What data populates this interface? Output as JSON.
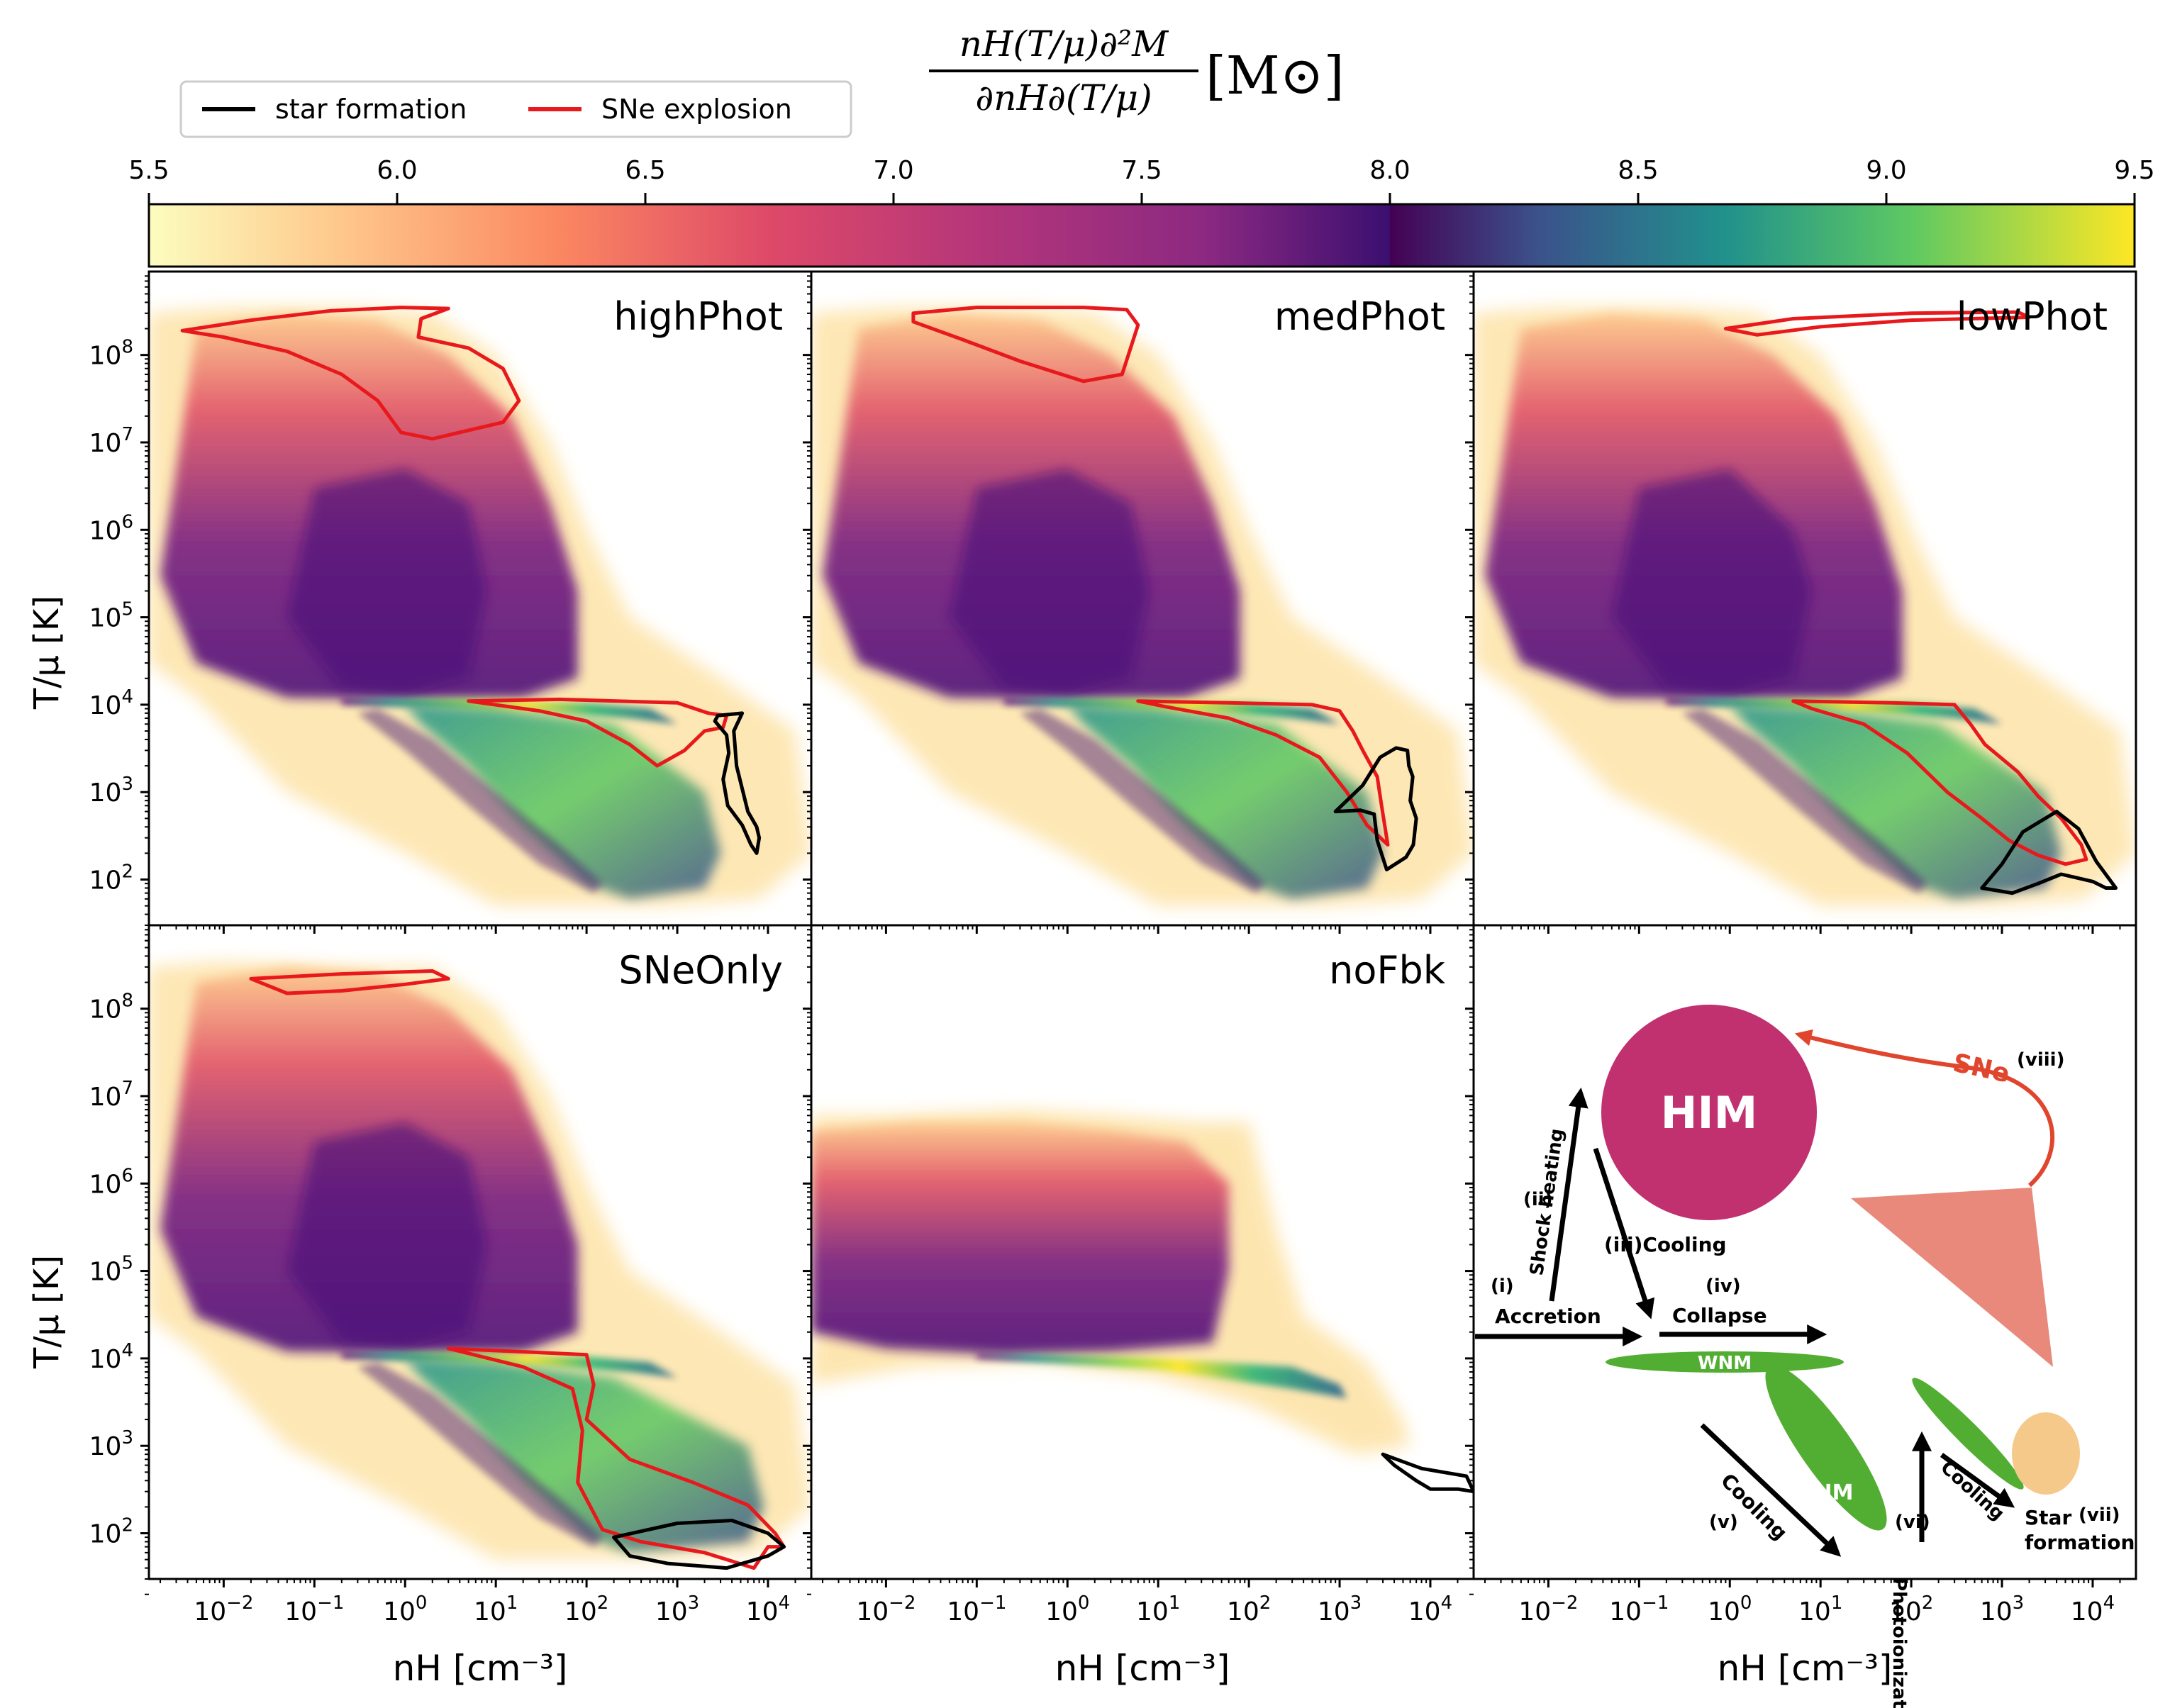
{
  "figure": {
    "colorbar_label": {
      "numerator": "nH(T/μ)∂²M",
      "denominator": "∂nH∂(T/μ)",
      "unit": "[M⊙]"
    },
    "legend": {
      "entries": [
        {
          "label": "star formation",
          "color": "#000000"
        },
        {
          "label": "SNe explosion",
          "color": "#e8191c"
        }
      ]
    },
    "colorbar": {
      "ticks": [
        "5.5",
        "6.0",
        "6.5",
        "7.0",
        "7.5",
        "8.0",
        "8.5",
        "9.0",
        "9.5"
      ],
      "range": [
        5.5,
        9.5
      ],
      "split": 8.0
    },
    "axes": {
      "ylabel": "T/μ [K]",
      "xlabel": "nH [cm⁻³]",
      "y_ticks": [
        "10^8",
        "10^7",
        "10^6",
        "10^5",
        "10^4",
        "10^3",
        "10^2"
      ],
      "x_ticks": [
        "10^-2",
        "10^-1",
        "10^0",
        "10^1",
        "10^2",
        "10^3",
        "10^4"
      ]
    },
    "panels": [
      {
        "name": "highPhot"
      },
      {
        "name": "medPhot"
      },
      {
        "name": "lowPhot"
      },
      {
        "name": "SNeOnly"
      },
      {
        "name": "noFbk"
      }
    ],
    "diagram": {
      "him": "HIM",
      "wnm": "WNM",
      "cnm": "CNM",
      "sne": "SNe",
      "sne_num": "(viii)",
      "accretion_num": "(i)",
      "accretion": "Accretion",
      "shock_num": "(ii)",
      "shock": "Shock heating",
      "cooling3": "(iii)Cooling",
      "collapse_num": "(iv)",
      "collapse": "Collapse",
      "cooling5": "Cooling",
      "cooling5_num": "(v)",
      "photo": "Photoionization",
      "photo_num": "(vi)",
      "cooling6": "Cooling",
      "star": "Star",
      "formation": "formation",
      "star_num": "(vii)"
    }
  },
  "chart_data": {
    "type": "heatmap",
    "title": "",
    "xlabel": "nH [cm⁻³]",
    "ylabel": "T/μ [K]",
    "xscale": "log",
    "yscale": "log",
    "xlim": [
      0.0015,
      30000
    ],
    "ylim": [
      30,
      900000000
    ],
    "colorbar": {
      "label": "nH(T/μ)∂²M/∂nH∂(T/μ) [M⊙]",
      "range": [
        5.5,
        9.5
      ],
      "colormaps": [
        "magma_r (5.5–8.0)",
        "viridis (8.0–9.5)"
      ]
    },
    "legend": [
      {
        "label": "star formation",
        "color": "#000000"
      },
      {
        "label": "SNe explosion",
        "color": "#e8191c"
      }
    ],
    "panels": [
      {
        "name": "highPhot",
        "sne_contours": [
          [
            [
              0.0035,
              190000000.0
            ],
            [
              0.02,
              250000000.0
            ],
            [
              0.15,
              320000000.0
            ],
            [
              0.9,
              350000000.0
            ],
            [
              3,
              340000000.0
            ],
            [
              1.5,
              260000000.0
            ],
            [
              1.4,
              160000000.0
            ],
            [
              5,
              120000000.0
            ],
            [
              12,
              70000000.0
            ],
            [
              18,
              30000000.0
            ],
            [
              12,
              17000000.0
            ],
            [
              2,
              11000000.0
            ],
            [
              0.9,
              13000000.0
            ],
            [
              0.5,
              30000000.0
            ],
            [
              0.2,
              60000000.0
            ],
            [
              0.05,
              110000000.0
            ],
            [
              0.01,
              160000000.0
            ],
            [
              0.0035,
              190000000.0
            ]
          ],
          [
            [
              5,
              11000.0
            ],
            [
              50,
              11500.0
            ],
            [
              1000,
              10500.0
            ],
            [
              2200,
              8000.0
            ],
            [
              3500,
              7500.0
            ],
            [
              3200,
              5500.0
            ],
            [
              2000,
              5000.0
            ],
            [
              1200,
              3000.0
            ],
            [
              600,
              2000.0
            ],
            [
              300,
              3500.0
            ],
            [
              100,
              6500.0
            ],
            [
              30,
              8500.0
            ],
            [
              5,
              11000.0
            ]
          ]
        ],
        "sf_contours": [
          [
            [
              2800,
              7500.0
            ],
            [
              5200,
              8000.0
            ],
            [
              4200,
              5000.0
            ],
            [
              4500,
              2000.0
            ],
            [
              6000,
              600
            ],
            [
              7500,
              400
            ],
            [
              8000,
              300
            ],
            [
              7500,
              200
            ],
            [
              6500,
              250
            ],
            [
              5200,
              420
            ],
            [
              3600,
              700
            ],
            [
              3200,
              1400
            ],
            [
              3700,
              2800
            ],
            [
              3500,
              4500
            ],
            [
              2600,
              6500
            ],
            [
              2800,
              7500.0
            ]
          ]
        ]
      },
      {
        "name": "medPhot",
        "sne_contours": [
          [
            [
              0.02,
              300000000.0
            ],
            [
              0.1,
              350000000.0
            ],
            [
              1.5,
              350000000.0
            ],
            [
              4.5,
              330000000.0
            ],
            [
              6,
              220000000.0
            ],
            [
              4,
              60000000.0
            ],
            [
              1.5,
              50000000.0
            ],
            [
              0.3,
              85000000.0
            ],
            [
              0.07,
              150000000.0
            ],
            [
              0.02,
              240000000.0
            ],
            [
              0.02,
              300000000.0
            ]
          ],
          [
            [
              6,
              11000.0
            ],
            [
              60,
              10500.0
            ],
            [
              500,
              10000.0
            ],
            [
              1000,
              8500.0
            ],
            [
              1400,
              5000.0
            ],
            [
              1800,
              3000.0
            ],
            [
              2600,
              1500.0
            ],
            [
              2900,
              700
            ],
            [
              3400,
              250
            ],
            [
              2000,
              420
            ],
            [
              1200,
              1000.0
            ],
            [
              600,
              2500.0
            ],
            [
              200,
              4500.0
            ],
            [
              60,
              7000.0
            ],
            [
              12,
              9500.0
            ],
            [
              6,
              11000.0
            ]
          ]
        ],
        "sf_contours": [
          [
            [
              900,
              600
            ],
            [
              1800,
              1200.0
            ],
            [
              2800,
              2500.0
            ],
            [
              4200,
              3200.0
            ],
            [
              5600,
              3000.0
            ],
            [
              5800,
              2000.0
            ],
            [
              6400,
              1500.0
            ],
            [
              6000,
              800
            ],
            [
              7000,
              500
            ],
            [
              6500,
              250
            ],
            [
              5400,
              180
            ],
            [
              3300,
              130
            ],
            [
              2600,
              280
            ],
            [
              2400,
              560
            ],
            [
              1700,
              620
            ],
            [
              900,
              600
            ]
          ]
        ]
      },
      {
        "name": "lowPhot",
        "sne_contours": [
          [
            [
              0.9,
              200000000.0
            ],
            [
              5,
              260000000.0
            ],
            [
              100,
              300000000.0
            ],
            [
              1500,
              310000000.0
            ],
            [
              2000,
              270000000.0
            ],
            [
              100,
              250000000.0
            ],
            [
              10,
              210000000.0
            ],
            [
              2,
              170000000.0
            ],
            [
              0.9,
              200000000.0
            ]
          ],
          [
            [
              5,
              11000.0
            ],
            [
              60,
              10500.0
            ],
            [
              300,
              10000.0
            ],
            [
              450,
              6000.0
            ],
            [
              650,
              3500.0
            ],
            [
              1500,
              1700.0
            ],
            [
              2500,
              900
            ],
            [
              4500,
              500
            ],
            [
              7500,
              250
            ],
            [
              8500,
              170
            ],
            [
              5000,
              150
            ],
            [
              2500,
              190
            ],
            [
              1200,
              280
            ],
            [
              600,
              500
            ],
            [
              250,
              1000.0
            ],
            [
              90,
              2800.0
            ],
            [
              30,
              6000.0
            ],
            [
              8,
              9000.0
            ],
            [
              5,
              11000.0
            ]
          ]
        ],
        "sf_contours": [
          [
            [
              1700,
              350
            ],
            [
              4000,
              600
            ],
            [
              7000,
              380
            ],
            [
              11000,
              160
            ],
            [
              18000,
              80
            ],
            [
              14000,
              80
            ],
            [
              10000,
              95
            ],
            [
              4500,
              115
            ],
            [
              2500,
              90
            ],
            [
              1300,
              70
            ],
            [
              600,
              80
            ],
            [
              1000,
              150
            ],
            [
              1700,
              350
            ]
          ]
        ]
      },
      {
        "name": "SNeOnly",
        "sne_contours": [
          [
            [
              0.02,
              220000000.0
            ],
            [
              0.2,
              250000000.0
            ],
            [
              2,
              270000000.0
            ],
            [
              3,
              220000000.0
            ],
            [
              1,
              190000000.0
            ],
            [
              0.2,
              160000000.0
            ],
            [
              0.05,
              150000000.0
            ],
            [
              0.02,
              220000000.0
            ]
          ],
          [
            [
              3,
              13000.0
            ],
            [
              40,
              11500.0
            ],
            [
              100,
              11000.0
            ],
            [
              120,
              5000.0
            ],
            [
              100,
              2000.0
            ],
            [
              300,
              700
            ],
            [
              1500,
              380
            ],
            [
              6000,
              210
            ],
            [
              12000,
              100
            ],
            [
              15000,
              70
            ],
            [
              10000,
              70
            ],
            [
              7000,
              40
            ],
            [
              2000,
              60
            ],
            [
              400,
              80
            ],
            [
              150,
              110
            ],
            [
              80,
              380
            ],
            [
              90,
              1500.0
            ],
            [
              70,
              4500.0
            ],
            [
              20,
              8000.0
            ],
            [
              3,
              13000.0
            ]
          ]
        ],
        "sf_contours": [
          [
            [
              200,
              90
            ],
            [
              1000,
              130
            ],
            [
              4000,
              140
            ],
            [
              10000,
              100
            ],
            [
              15000,
              70
            ],
            [
              10000,
              55
            ],
            [
              3500,
              40
            ],
            [
              800,
              45
            ],
            [
              300,
              55
            ],
            [
              200,
              90
            ]
          ]
        ]
      },
      {
        "name": "noFbk",
        "sne_contours": [],
        "sf_contours": [
          [
            [
              3000,
              800
            ],
            [
              8000,
              550
            ],
            [
              25000,
              450
            ],
            [
              30000,
              300
            ],
            [
              20000,
              320
            ],
            [
              10000,
              320
            ],
            [
              7000,
              400
            ],
            [
              4000,
              600
            ],
            [
              3000,
              800
            ]
          ]
        ]
      }
    ]
  }
}
